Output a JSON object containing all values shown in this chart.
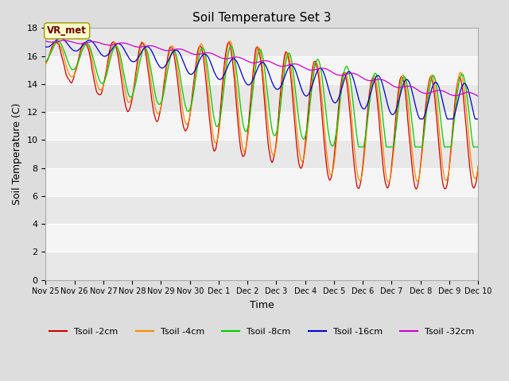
{
  "title": "Soil Temperature Set 3",
  "xlabel": "Time",
  "ylabel": "Soil Temperature (C)",
  "ylim": [
    0,
    18
  ],
  "yticks": [
    0,
    2,
    4,
    6,
    8,
    10,
    12,
    14,
    16,
    18
  ],
  "xtick_labels": [
    "Nov 25",
    "Nov 26",
    "Nov 27",
    "Nov 28",
    "Nov 29",
    "Nov 30",
    "Dec 1",
    "Dec 2",
    "Dec 3",
    "Dec 4",
    "Dec 5",
    "Dec 6",
    "Dec 7",
    "Dec 8",
    "Dec 9",
    "Dec 10"
  ],
  "colors": {
    "Tsoil -2cm": "#cc0000",
    "Tsoil -4cm": "#ff8800",
    "Tsoil -8cm": "#00cc00",
    "Tsoil -16cm": "#0000cc",
    "Tsoil -32cm": "#cc00cc"
  },
  "vr_met_label": "VR_met",
  "annotation_box_color": "#ffffcc",
  "annotation_text_color": "#660000",
  "bg_bands": [
    "#e8e8e8",
    "#f5f5f5"
  ]
}
